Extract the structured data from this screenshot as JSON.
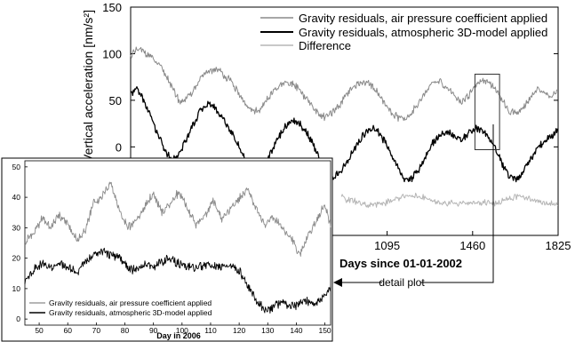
{
  "colors": {
    "air_pressure": "#8a8a8a",
    "atmospheric_3d": "#000000",
    "difference": "#b5b5b5",
    "axis": "#000000",
    "background": "#ffffff"
  },
  "chart_data": [
    {
      "type": "line",
      "ylabel": "Vertical acceleration [nm/s²]",
      "xlabel": "Days since 01-01-2002",
      "xlim": [
        0,
        1825
      ],
      "ylim": [
        -95,
        150
      ],
      "yticks": [
        150,
        100,
        50,
        0
      ],
      "ytick_labels": [
        "150",
        "100",
        "50",
        "0"
      ],
      "xticks": [
        1095,
        1460,
        1825
      ],
      "xtick_labels": [
        "1095",
        "1460",
        "1825"
      ],
      "grid": false,
      "legend_position": "top-right",
      "series": [
        {
          "name": "Gravity residuals, air pressure coefficient applied",
          "x": [
            0,
            30,
            60,
            90,
            120,
            150,
            180,
            210,
            240,
            270,
            300,
            330,
            360,
            390,
            420,
            450,
            480,
            510,
            540,
            570,
            600,
            630,
            660,
            690,
            720,
            750,
            780,
            810,
            840,
            870,
            900,
            930,
            960,
            990,
            1020,
            1050,
            1080,
            1110,
            1140,
            1170,
            1200,
            1230,
            1260,
            1290,
            1320,
            1350,
            1380,
            1410,
            1440,
            1470,
            1500,
            1530,
            1560,
            1590,
            1620,
            1650,
            1680,
            1710,
            1740,
            1770,
            1800,
            1825
          ],
          "y": [
            98,
            105,
            102,
            96,
            88,
            78,
            62,
            48,
            52,
            62,
            74,
            80,
            84,
            80,
            72,
            62,
            48,
            40,
            38,
            46,
            56,
            64,
            68,
            68,
            62,
            52,
            42,
            34,
            32,
            38,
            48,
            58,
            66,
            70,
            68,
            60,
            48,
            38,
            32,
            30,
            36,
            48,
            60,
            68,
            70,
            64,
            56,
            48,
            54,
            66,
            72,
            70,
            60,
            48,
            38,
            36,
            44,
            54,
            62,
            58,
            54,
            62
          ]
        },
        {
          "name": "Gravity residuals, atmospheric 3D-model applied",
          "x": [
            0,
            30,
            60,
            90,
            120,
            150,
            180,
            210,
            240,
            270,
            300,
            330,
            360,
            390,
            420,
            450,
            480,
            510,
            540,
            570,
            600,
            630,
            660,
            690,
            720,
            750,
            780,
            810,
            840,
            870,
            900,
            930,
            960,
            990,
            1020,
            1050,
            1080,
            1110,
            1140,
            1170,
            1200,
            1230,
            1260,
            1290,
            1320,
            1350,
            1380,
            1410,
            1440,
            1470,
            1500,
            1530,
            1560,
            1590,
            1620,
            1650,
            1680,
            1710,
            1740,
            1770,
            1800,
            1825
          ],
          "y": [
            58,
            62,
            48,
            30,
            12,
            -6,
            -14,
            -6,
            10,
            26,
            40,
            46,
            42,
            32,
            20,
            6,
            -10,
            -22,
            -28,
            -20,
            -6,
            10,
            22,
            28,
            26,
            16,
            2,
            -14,
            -26,
            -32,
            -26,
            -14,
            0,
            12,
            20,
            18,
            8,
            -8,
            -22,
            -34,
            -34,
            -24,
            -10,
            4,
            12,
            16,
            12,
            8,
            14,
            20,
            18,
            10,
            -4,
            -20,
            -32,
            -34,
            -24,
            -12,
            0,
            6,
            12,
            20
          ]
        },
        {
          "name": "Difference",
          "x": [
            900,
            930,
            960,
            990,
            1020,
            1050,
            1080,
            1110,
            1140,
            1170,
            1200,
            1230,
            1260,
            1290,
            1320,
            1350,
            1380,
            1410,
            1440,
            1470,
            1500,
            1530,
            1560,
            1590,
            1620,
            1650,
            1680,
            1710,
            1740,
            1770,
            1800,
            1825
          ],
          "y": [
            -54,
            -57,
            -59,
            -62,
            -63,
            -62,
            -60,
            -58,
            -55,
            -53,
            -52,
            -53,
            -55,
            -59,
            -61,
            -61,
            -60,
            -61,
            -61,
            -60,
            -59,
            -60,
            -61,
            -58,
            -55,
            -53,
            -54,
            -56,
            -59,
            -60,
            -61,
            -62
          ]
        }
      ],
      "annotation_label": "detail plot",
      "detail_window_x": [
        1470,
        1575
      ]
    },
    {
      "type": "line",
      "xlabel": "Day in 2006",
      "ylabel": "",
      "xlim": [
        45,
        152
      ],
      "ylim": [
        -2,
        52
      ],
      "xticks": [
        50,
        60,
        70,
        80,
        90,
        100,
        110,
        120,
        130,
        140,
        150
      ],
      "xtick_labels": [
        "50",
        "60",
        "70",
        "80",
        "90",
        "100",
        "110",
        "120",
        "130",
        "140",
        "150"
      ],
      "yticks": [
        0,
        10,
        20,
        30,
        40,
        50
      ],
      "ytick_labels": [
        "0",
        "10",
        "20",
        "30",
        "40",
        "50"
      ],
      "grid": false,
      "legend_position": "bottom-left",
      "series": [
        {
          "name": "Gravity residuals, air pressure coefficient applied",
          "x": [
            45,
            48,
            51,
            54,
            57,
            60,
            63,
            66,
            69,
            72,
            75,
            78,
            81,
            84,
            87,
            90,
            93,
            96,
            99,
            102,
            105,
            108,
            111,
            114,
            117,
            120,
            123,
            126,
            129,
            132,
            135,
            138,
            141,
            144,
            147,
            150,
            152
          ],
          "y": [
            25,
            28,
            33,
            30,
            34,
            31,
            26,
            29,
            38,
            40,
            45,
            36,
            30,
            32,
            37,
            41,
            35,
            38,
            42,
            36,
            31,
            34,
            39,
            33,
            36,
            40,
            43,
            36,
            31,
            33,
            30,
            27,
            21,
            27,
            32,
            38,
            30
          ]
        },
        {
          "name": "Gravity residuals, atmospheric 3D-model applied",
          "x": [
            45,
            48,
            51,
            54,
            57,
            60,
            63,
            66,
            69,
            72,
            75,
            78,
            81,
            84,
            87,
            90,
            93,
            96,
            99,
            102,
            105,
            108,
            111,
            114,
            117,
            120,
            123,
            126,
            129,
            132,
            135,
            138,
            141,
            144,
            147,
            150,
            152
          ],
          "y": [
            12,
            16,
            18,
            17,
            18,
            17,
            15,
            19,
            21,
            22,
            21,
            20,
            17,
            16,
            18,
            17,
            19,
            20,
            18,
            17,
            17,
            18,
            17,
            17,
            18,
            16,
            11,
            6,
            3,
            4,
            6,
            4,
            5,
            6,
            5,
            8,
            10
          ]
        }
      ]
    }
  ]
}
